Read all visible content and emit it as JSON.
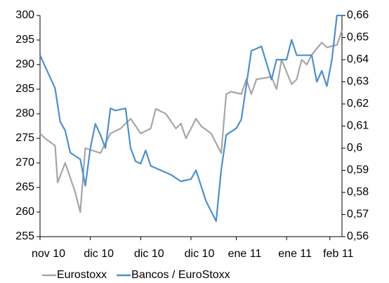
{
  "chart_data": {
    "type": "line",
    "xlim": [
      0,
      60
    ],
    "xticks": [
      {
        "value": 0,
        "label": "nov 10"
      },
      {
        "value": 10,
        "label": "dic 10"
      },
      {
        "value": 20,
        "label": "dic 10"
      },
      {
        "value": 30,
        "label": "dic 10"
      },
      {
        "value": 39,
        "label": "ene 11"
      },
      {
        "value": 49,
        "label": "ene 11"
      },
      {
        "value": 57.6,
        "label": "feb 11"
      }
    ],
    "ylim": [
      255,
      300
    ],
    "yticks": [
      255,
      260,
      265,
      270,
      275,
      280,
      285,
      290,
      295,
      300
    ],
    "y2lim": [
      0.56,
      0.66
    ],
    "y2ticks": [
      {
        "value": 0.56,
        "label": "0,56"
      },
      {
        "value": 0.57,
        "label": "0,57"
      },
      {
        "value": 0.58,
        "label": "0,58"
      },
      {
        "value": 0.59,
        "label": "0,59"
      },
      {
        "value": 0.6,
        "label": "0,6"
      },
      {
        "value": 0.61,
        "label": "0,61"
      },
      {
        "value": 0.62,
        "label": "0,62"
      },
      {
        "value": 0.63,
        "label": "0,63"
      },
      {
        "value": 0.64,
        "label": "0,64"
      },
      {
        "value": 0.65,
        "label": "0,65"
      },
      {
        "value": 0.66,
        "label": "0,66"
      }
    ],
    "grid": false,
    "legend": "bottom",
    "series": [
      {
        "name": "Eurostoxx",
        "color": "#a6a6a6",
        "x": [
          0,
          1,
          3,
          3.5,
          5,
          7,
          8,
          9,
          12,
          14,
          16,
          18,
          19,
          20,
          22,
          23,
          25,
          27,
          28,
          29,
          31,
          32,
          34,
          36,
          37,
          38,
          40,
          41,
          42,
          43,
          46,
          47,
          48,
          50,
          51,
          52,
          53,
          54,
          56,
          57,
          59,
          60
        ],
        "values": [
          276,
          275,
          273.5,
          266,
          270,
          264,
          260,
          273,
          272,
          276,
          277,
          279,
          277.5,
          276,
          277,
          281,
          280,
          277,
          278,
          275,
          279,
          277.5,
          276,
          272,
          284,
          284.5,
          284,
          287,
          284,
          287,
          287.5,
          285,
          291,
          286,
          287,
          291,
          290,
          292,
          294.5,
          293.5,
          294,
          297
        ]
      },
      {
        "name": "Bancos / EuroStoxx",
        "color": "#4f8fcc",
        "axis": "y2",
        "x": [
          0,
          2,
          3,
          4,
          5,
          6,
          8,
          9,
          10,
          11,
          12,
          13,
          14,
          15,
          17,
          18,
          19,
          20,
          21,
          22,
          24,
          26,
          28,
          30,
          31,
          33,
          35,
          36,
          37,
          39,
          40,
          42,
          44,
          46,
          47,
          49,
          50,
          51,
          53,
          54,
          55,
          56,
          57,
          58,
          59,
          60
        ],
        "values": [
          0.642,
          0.632,
          0.627,
          0.612,
          0.608,
          0.598,
          0.595,
          0.583,
          0.6,
          0.611,
          0.606,
          0.6,
          0.618,
          0.617,
          0.618,
          0.6,
          0.594,
          0.593,
          0.599,
          0.592,
          0.59,
          0.588,
          0.585,
          0.586,
          0.59,
          0.576,
          0.567,
          0.59,
          0.606,
          0.609,
          0.613,
          0.644,
          0.646,
          0.631,
          0.64,
          0.64,
          0.649,
          0.642,
          0.642,
          0.642,
          0.63,
          0.635,
          0.628,
          0.64,
          0.66,
          0.66
        ]
      }
    ]
  }
}
